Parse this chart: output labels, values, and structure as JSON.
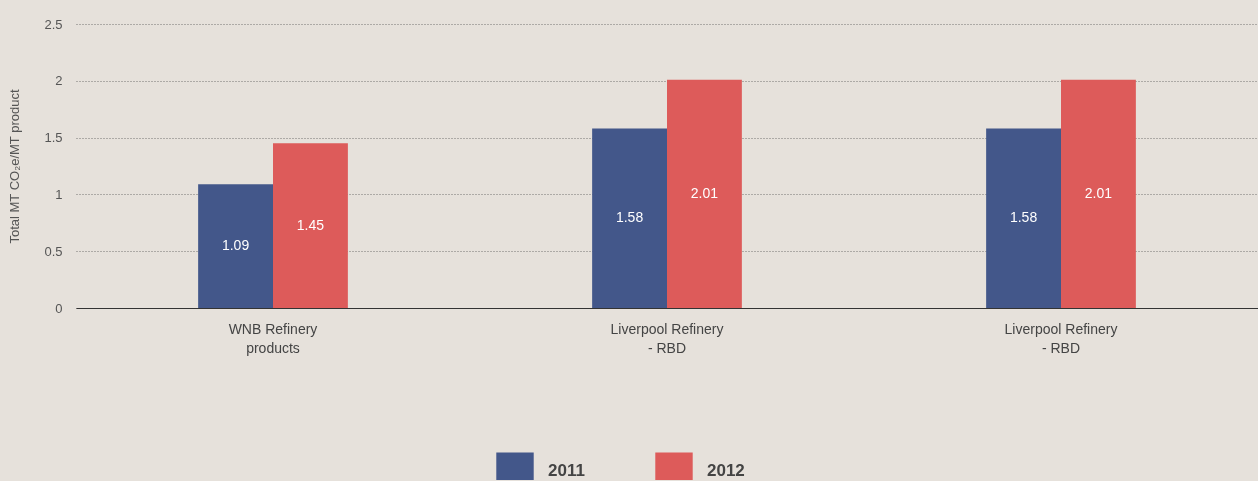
{
  "chart_data": {
    "type": "bar",
    "ylabel": "Total MT CO₂e/MT product",
    "categories": [
      "WNB Refinery products",
      "Liverpool Refinery - RBD",
      "Liverpool Refinery - RBD"
    ],
    "series": [
      {
        "name": "2011",
        "color": "#43578a",
        "values": [
          1.09,
          1.58,
          1.58
        ]
      },
      {
        "name": "2012",
        "color": "#dd5b5a",
        "values": [
          1.45,
          2.01,
          2.01
        ]
      }
    ],
    "ylim": [
      0,
      2.5
    ],
    "yticks": [
      0,
      0.5,
      1,
      1.5,
      2,
      2.5
    ],
    "grid": "y",
    "legend": "bottom",
    "data_labels": true
  }
}
